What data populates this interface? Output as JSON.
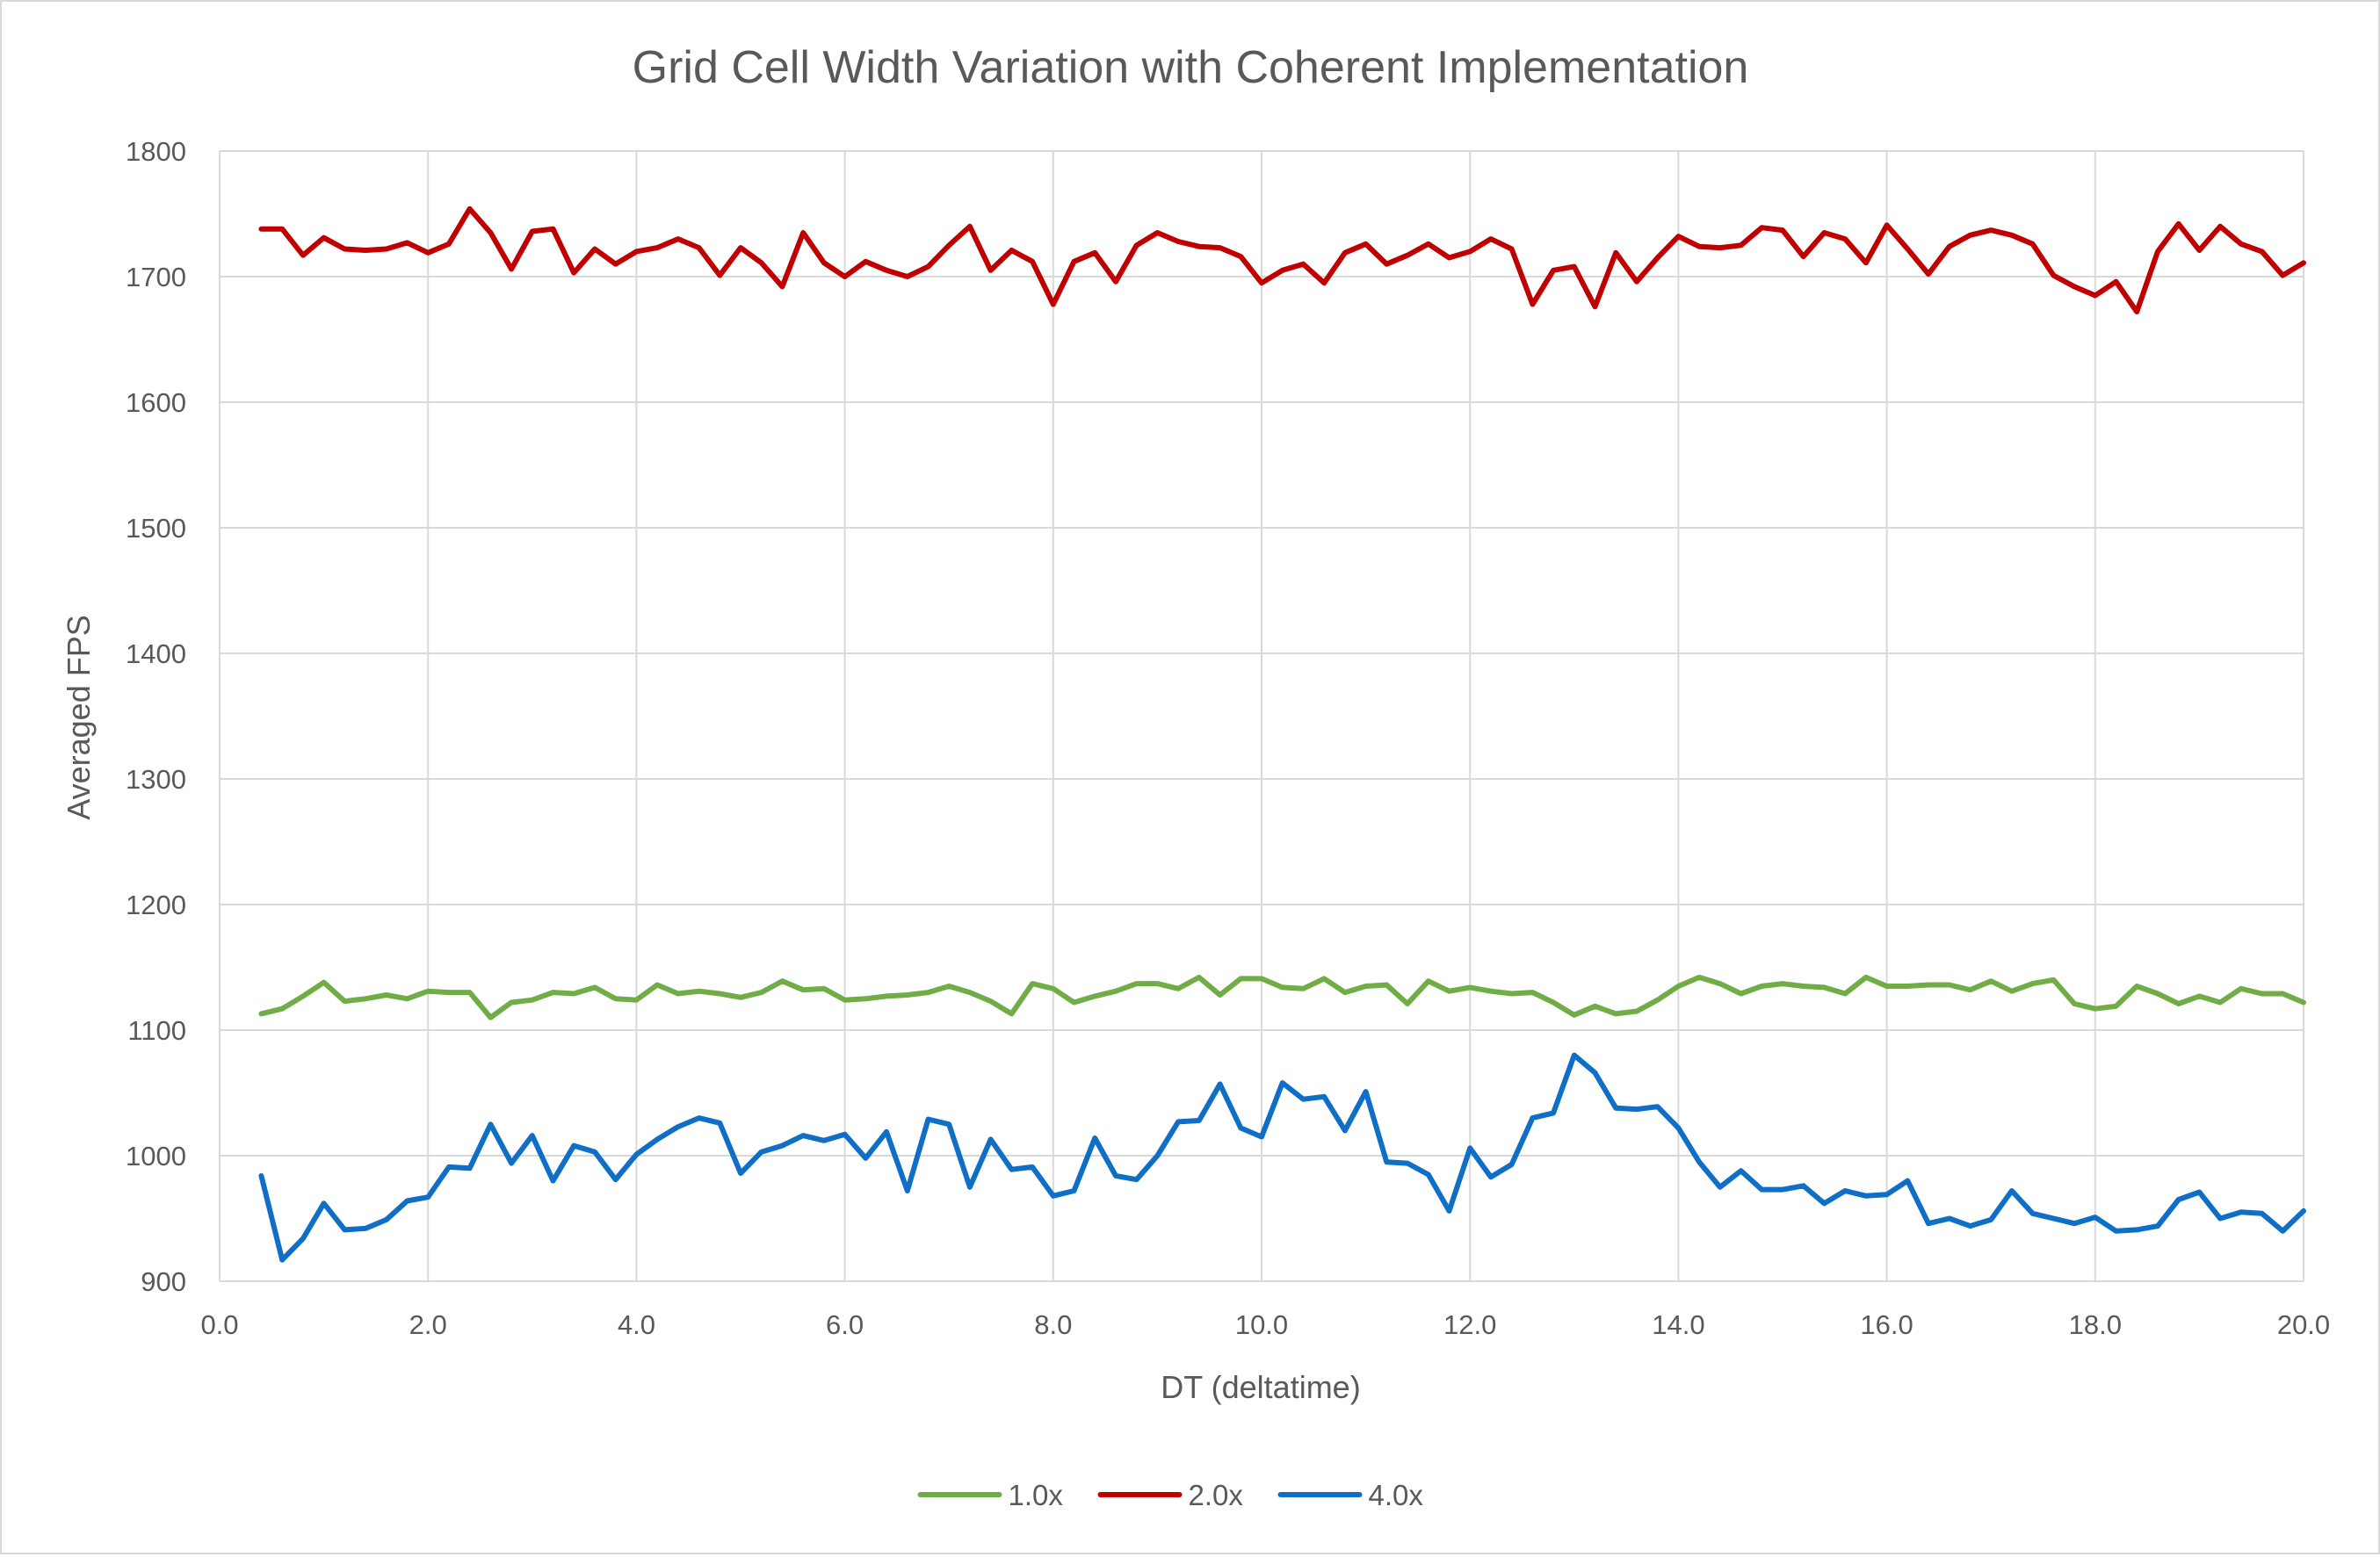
{
  "chart_data": {
    "type": "line",
    "title": "Grid Cell Width Variation with Coherent Implementation",
    "xlabel": "DT (deltatime)",
    "ylabel": "Averaged FPS",
    "xlim": [
      0,
      20
    ],
    "ylim": [
      900,
      1800
    ],
    "x_ticks": [
      "0.0",
      "2.0",
      "4.0",
      "6.0",
      "8.0",
      "10.0",
      "12.0",
      "14.0",
      "16.0",
      "18.0",
      "20.0"
    ],
    "y_ticks": [
      "900",
      "1000",
      "1100",
      "1200",
      "1300",
      "1400",
      "1500",
      "1600",
      "1700",
      "1800"
    ],
    "grid": true,
    "legend": "bottom",
    "x": [
      0.4,
      0.6,
      0.8,
      1.0,
      1.2,
      1.4,
      1.6,
      1.8,
      2.0,
      2.2,
      2.4,
      2.6,
      2.8,
      3.0,
      3.2,
      3.4,
      3.6,
      3.8,
      4.0,
      4.2,
      4.4,
      4.6,
      4.8,
      5.0,
      5.2,
      5.4,
      5.6,
      5.8,
      6.0,
      6.2,
      6.4,
      6.6,
      6.8,
      7.0,
      7.2,
      7.4,
      7.6,
      7.8,
      8.0,
      8.2,
      8.4,
      8.6,
      8.8,
      9.0,
      9.2,
      9.4,
      9.6,
      9.8,
      10.0,
      10.2,
      10.4,
      10.6,
      10.8,
      11.0,
      11.2,
      11.4,
      11.6,
      11.8,
      12.0,
      12.2,
      12.4,
      12.6,
      12.8,
      13.0,
      13.2,
      13.4,
      13.6,
      13.8,
      14.0,
      14.2,
      14.4,
      14.6,
      14.8,
      15.0,
      15.2,
      15.4,
      15.6,
      15.8,
      16.0,
      16.2,
      16.4,
      16.6,
      16.8,
      17.0,
      17.2,
      17.4,
      17.6,
      17.8,
      18.0,
      18.2,
      18.4,
      18.6,
      18.8,
      19.0,
      19.2,
      19.4,
      19.6,
      19.8,
      20.0
    ],
    "series": [
      {
        "name": "1.0x",
        "color": "#70ad47",
        "values": [
          1113,
          1117,
          1127,
          1138,
          1123,
          1125,
          1128,
          1125,
          1131,
          1130,
          1130,
          1110,
          1122,
          1124,
          1130,
          1129,
          1134,
          1125,
          1124,
          1136,
          1129,
          1131,
          1129,
          1126,
          1130,
          1139,
          1132,
          1133,
          1124,
          1125,
          1127,
          1128,
          1130,
          1135,
          1130,
          1123,
          1113,
          1137,
          1133,
          1122,
          1127,
          1131,
          1137,
          1137,
          1133,
          1142,
          1128,
          1141,
          1141,
          1134,
          1133,
          1141,
          1130,
          1135,
          1136,
          1121,
          1139,
          1131,
          1134,
          1131,
          1129,
          1130,
          1122,
          1112,
          1119,
          1113,
          1115,
          1124,
          1135,
          1142,
          1137,
          1129,
          1135,
          1137,
          1135,
          1134,
          1129,
          1142,
          1135,
          1135,
          1136,
          1136,
          1132,
          1139,
          1131,
          1137,
          1140,
          1121,
          1117,
          1119,
          1135,
          1129,
          1121,
          1127,
          1122,
          1133,
          1129,
          1129,
          1122
        ]
      },
      {
        "name": "2.0x",
        "color": "#c00000",
        "values": [
          1738,
          1738,
          1717,
          1731,
          1722,
          1721,
          1722,
          1727,
          1719,
          1726,
          1754,
          1735,
          1706,
          1736,
          1738,
          1703,
          1722,
          1710,
          1720,
          1723,
          1730,
          1723,
          1701,
          1723,
          1711,
          1692,
          1735,
          1711,
          1700,
          1712,
          1705,
          1700,
          1708,
          1725,
          1740,
          1705,
          1721,
          1712,
          1678,
          1712,
          1719,
          1696,
          1725,
          1735,
          1728,
          1724,
          1723,
          1716,
          1695,
          1705,
          1710,
          1695,
          1719,
          1726,
          1710,
          1717,
          1726,
          1715,
          1720,
          1730,
          1722,
          1678,
          1705,
          1708,
          1676,
          1719,
          1696,
          1715,
          1732,
          1724,
          1723,
          1725,
          1739,
          1737,
          1716,
          1735,
          1730,
          1711,
          1741,
          1722,
          1702,
          1724,
          1733,
          1737,
          1733,
          1726,
          1701,
          1692,
          1685,
          1696,
          1672,
          1720,
          1742,
          1721,
          1740,
          1726,
          1720,
          1701,
          1711
        ]
      },
      {
        "name": "4.0x",
        "color": "#0f6fc6",
        "values": [
          984,
          917,
          934,
          962,
          941,
          942,
          949,
          964,
          967,
          991,
          990,
          1025,
          994,
          1016,
          980,
          1008,
          1003,
          981,
          1001,
          1013,
          1023,
          1030,
          1026,
          986,
          1003,
          1008,
          1016,
          1012,
          1017,
          998,
          1019,
          972,
          1029,
          1025,
          975,
          1013,
          989,
          991,
          968,
          972,
          1014,
          984,
          981,
          1000,
          1027,
          1028,
          1057,
          1022,
          1015,
          1058,
          1045,
          1047,
          1020,
          1051,
          995,
          994,
          985,
          956,
          1006,
          983,
          993,
          1030,
          1034,
          1080,
          1066,
          1038,
          1037,
          1039,
          1022,
          995,
          975,
          988,
          973,
          973,
          976,
          962,
          972,
          968,
          969,
          980,
          946,
          950,
          944,
          949,
          972,
          954,
          950,
          946,
          951,
          940,
          941,
          944,
          965,
          971,
          950,
          955,
          954,
          940,
          956
        ]
      }
    ]
  }
}
